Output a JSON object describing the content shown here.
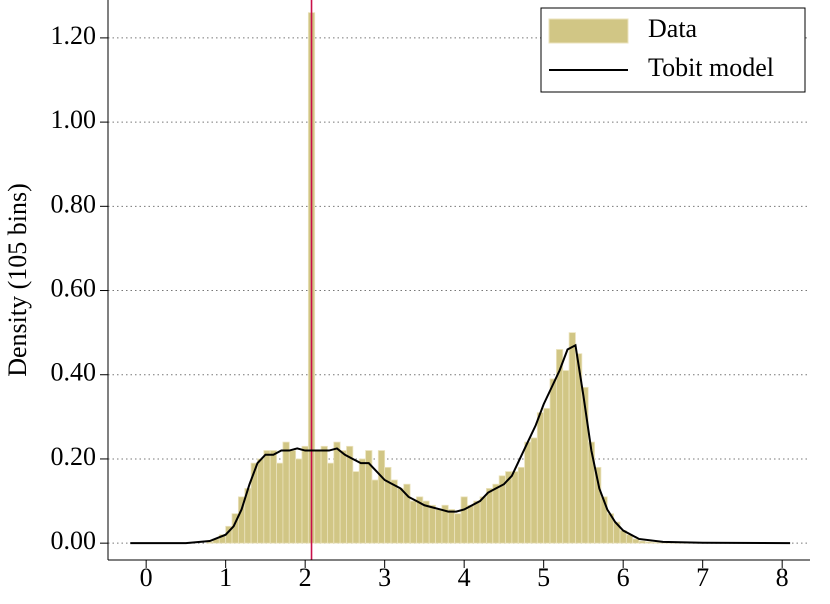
{
  "chart_data": {
    "type": "histogram",
    "y_label": "Density (105 bins)",
    "xlim": [
      -0.48,
      8.35
    ],
    "ylim": [
      -0.04,
      1.29
    ],
    "xticks": [
      0,
      1,
      2,
      3,
      4,
      5,
      6,
      7,
      8
    ],
    "yticks": [
      {
        "value": 0,
        "label": "0.00"
      },
      {
        "value": 0.2,
        "label": "0.20"
      },
      {
        "value": 0.4,
        "label": "0.40"
      },
      {
        "value": 0.6,
        "label": "0.60"
      },
      {
        "value": 0.8,
        "label": "0.80"
      },
      {
        "value": 1.0,
        "label": "1.00"
      },
      {
        "value": 1.2,
        "label": "1.20"
      }
    ],
    "grid": true,
    "legend": "upper right",
    "vline": {
      "x": 2.08,
      "color": "#c8104a"
    },
    "series": [
      {
        "name": "Data",
        "type": "histogram",
        "color": "#d1c685",
        "bins": [
          -0.2,
          -0.12,
          -0.04,
          0.04,
          0.12,
          0.2,
          0.28,
          0.36,
          0.44,
          0.52,
          0.6,
          0.68,
          0.76,
          0.84,
          0.92,
          1,
          1.08,
          1.16,
          1.24,
          1.32,
          1.4,
          1.48,
          1.56,
          1.64,
          1.72,
          1.8,
          1.88,
          1.96,
          2.04,
          2.12,
          2.2,
          2.28,
          2.36,
          2.44,
          2.52,
          2.6,
          2.68,
          2.76,
          2.84,
          2.92,
          3,
          3.08,
          3.16,
          3.24,
          3.32,
          3.4,
          3.48,
          3.56,
          3.64,
          3.72,
          3.8,
          3.88,
          3.96,
          4.04,
          4.12,
          4.2,
          4.28,
          4.36,
          4.44,
          4.52,
          4.6,
          4.68,
          4.76,
          4.84,
          4.92,
          5,
          5.08,
          5.16,
          5.24,
          5.32,
          5.4,
          5.48,
          5.56,
          5.64,
          5.72,
          5.8,
          5.88,
          5.96,
          6.04,
          6.12,
          6.2,
          6.28,
          6.36,
          6.44,
          6.52,
          6.6,
          6.68,
          6.76,
          6.84,
          6.92,
          7,
          7.08,
          7.16,
          7.24,
          7.32,
          7.4,
          7.48,
          7.56,
          7.64,
          7.72,
          7.8,
          7.88,
          7.96,
          8.04,
          8.12,
          8.2
        ],
        "values": [
          0,
          0,
          0,
          0,
          0,
          0,
          0,
          0,
          0,
          0,
          0,
          0,
          0.003,
          0.01,
          0.02,
          0.04,
          0.07,
          0.11,
          0.13,
          0.19,
          0.2,
          0.22,
          0.22,
          0.19,
          0.24,
          0.22,
          0.2,
          0.23,
          1.26,
          0.22,
          0.23,
          0.19,
          0.24,
          0.22,
          0.23,
          0.17,
          0.2,
          0.22,
          0.15,
          0.22,
          0.18,
          0.15,
          0.13,
          0.14,
          0.1,
          0.11,
          0.1,
          0.09,
          0.08,
          0.09,
          0.08,
          0.07,
          0.11,
          0.09,
          0.1,
          0.11,
          0.13,
          0.14,
          0.16,
          0.17,
          0.17,
          0.18,
          0.24,
          0.25,
          0.31,
          0.32,
          0.39,
          0.46,
          0.41,
          0.5,
          0.45,
          0.37,
          0.24,
          0.18,
          0.11,
          0.07,
          0.05,
          0.03,
          0.02,
          0.01,
          0.005,
          0.003,
          0.002,
          0.002,
          0.001,
          0.001,
          0.001,
          0.001,
          0.001,
          0.001,
          0,
          0,
          0,
          0,
          0,
          0,
          0,
          0,
          0,
          0,
          0,
          0,
          0,
          0,
          0
        ]
      },
      {
        "name": "Tobit model",
        "type": "line",
        "color": "#000000",
        "x": [
          -0.2,
          0,
          0.5,
          0.8,
          1.0,
          1.1,
          1.2,
          1.3,
          1.4,
          1.5,
          1.6,
          1.7,
          1.8,
          1.9,
          2.0,
          2.1,
          2.2,
          2.3,
          2.4,
          2.5,
          2.6,
          2.7,
          2.8,
          2.9,
          3.0,
          3.1,
          3.2,
          3.3,
          3.4,
          3.5,
          3.6,
          3.7,
          3.8,
          3.9,
          4.0,
          4.1,
          4.2,
          4.3,
          4.4,
          4.5,
          4.6,
          4.7,
          4.8,
          4.9,
          5.0,
          5.1,
          5.2,
          5.3,
          5.4,
          5.5,
          5.6,
          5.7,
          5.8,
          5.9,
          6.0,
          6.2,
          6.5,
          7.0,
          8.1
        ],
        "values": [
          0,
          0,
          0,
          0.005,
          0.02,
          0.04,
          0.08,
          0.14,
          0.19,
          0.21,
          0.21,
          0.22,
          0.22,
          0.225,
          0.22,
          0.22,
          0.22,
          0.22,
          0.225,
          0.21,
          0.2,
          0.19,
          0.19,
          0.17,
          0.15,
          0.14,
          0.13,
          0.11,
          0.1,
          0.09,
          0.085,
          0.08,
          0.075,
          0.075,
          0.08,
          0.09,
          0.1,
          0.12,
          0.13,
          0.14,
          0.16,
          0.2,
          0.24,
          0.28,
          0.33,
          0.37,
          0.41,
          0.46,
          0.47,
          0.35,
          0.22,
          0.13,
          0.08,
          0.05,
          0.03,
          0.01,
          0.003,
          0.001,
          0
        ]
      }
    ]
  }
}
